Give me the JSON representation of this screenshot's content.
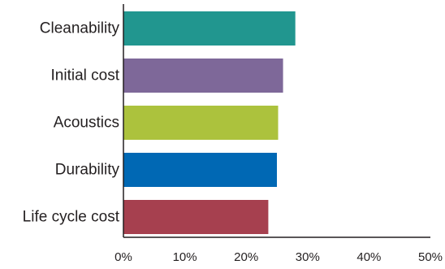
{
  "chart_data": {
    "type": "bar",
    "orientation": "horizontal",
    "categories": [
      "Cleanability",
      "Initial cost",
      "Acoustics",
      "Durability",
      "Life cycle cost"
    ],
    "values": [
      28,
      26,
      25.2,
      25,
      23.6
    ],
    "colors": [
      "#21968f",
      "#7e6899",
      "#acc23d",
      "#0068b4",
      "#a6404f"
    ],
    "xlim": [
      0,
      50
    ],
    "xticks": [
      0,
      10,
      20,
      30,
      40,
      50
    ],
    "xtick_labels": [
      "0%",
      "10%",
      "20%",
      "30%",
      "40%",
      "50%"
    ],
    "title": "",
    "xlabel": "",
    "ylabel": "",
    "grid": false,
    "legend": "none"
  }
}
